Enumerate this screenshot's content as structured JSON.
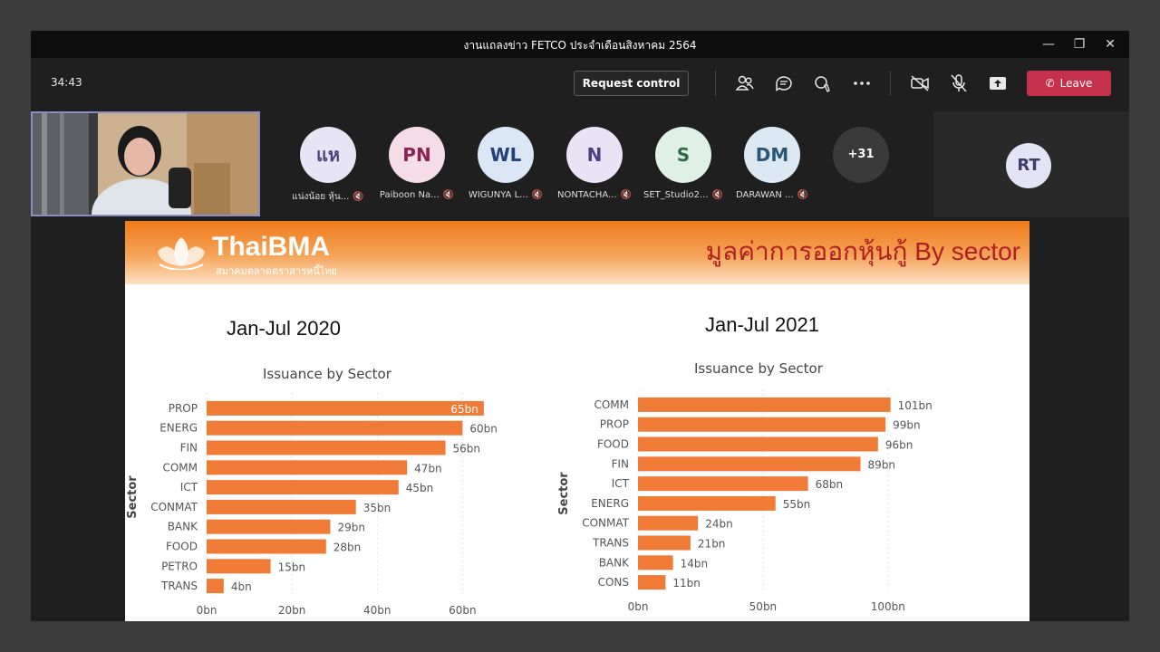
{
  "window": {
    "title": "งานแถลงข่าว FETCO ประจำเดือนสิงหาคม 2564"
  },
  "toolbar": {
    "timer": "34:43",
    "request_control_label": "Request control",
    "leave_label": "Leave",
    "accent_leave": "#c4314b"
  },
  "participants": [
    {
      "initials": "แห",
      "name": "แน่งน้อย หุ้น...",
      "bg": "#e7e5f5",
      "fg": "#4a4380"
    },
    {
      "initials": "PN",
      "name": "Paiboon Na...",
      "bg": "#f6dce6",
      "fg": "#8b2252"
    },
    {
      "initials": "WL",
      "name": "WIGUNYA L...",
      "bg": "#dbe6f6",
      "fg": "#23427a"
    },
    {
      "initials": "N",
      "name": "NONTACHA...",
      "bg": "#e8e3f6",
      "fg": "#4b3f85"
    },
    {
      "initials": "S",
      "name": "SET_Studio2...",
      "bg": "#dff0e6",
      "fg": "#2f6a48"
    },
    {
      "initials": "DM",
      "name": "DARAWAN ...",
      "bg": "#dce9f3",
      "fg": "#2c5676"
    }
  ],
  "more_participants": "+31",
  "rt_avatar": "RT",
  "slide": {
    "logo": "ThaiBMA",
    "logo_sub": "สมาคมตลาดตราสารหนี้ไทย",
    "title": "มูลค่าการออกหุ้นกู้ By sector",
    "bar_color": "#ef7b37"
  },
  "chart_data": [
    {
      "type": "bar",
      "orientation": "horizontal",
      "heading": "Jan-Jul 2020",
      "title": "Issuance by Sector",
      "ylabel": "Sector",
      "categories": [
        "PROP",
        "ENERG",
        "FIN",
        "COMM",
        "ICT",
        "CONMAT",
        "BANK",
        "FOOD",
        "PETRO",
        "TRANS"
      ],
      "values": [
        65,
        60,
        56,
        47,
        45,
        35,
        29,
        28,
        15,
        4
      ],
      "value_labels": [
        "65bn",
        "60bn",
        "56bn",
        "47bn",
        "45bn",
        "35bn",
        "29bn",
        "28bn",
        "15bn",
        "4bn"
      ],
      "xticks": [
        "0bn",
        "20bn",
        "40bn",
        "60bn"
      ],
      "xtick_values": [
        0,
        20,
        40,
        60
      ],
      "xlim": [
        0,
        68
      ]
    },
    {
      "type": "bar",
      "orientation": "horizontal",
      "heading": "Jan-Jul 2021",
      "title": "Issuance by Sector",
      "ylabel": "Sector",
      "categories": [
        "COMM",
        "PROP",
        "FOOD",
        "FIN",
        "ICT",
        "ENERG",
        "CONMAT",
        "TRANS",
        "BANK",
        "CONS"
      ],
      "values": [
        101,
        99,
        96,
        89,
        68,
        55,
        24,
        21,
        14,
        11
      ],
      "value_labels": [
        "101bn",
        "99bn",
        "96bn",
        "89bn",
        "68bn",
        "55bn",
        "24bn",
        "21bn",
        "14bn",
        "11bn"
      ],
      "xticks": [
        "0bn",
        "50bn",
        "100bn"
      ],
      "xtick_values": [
        0,
        50,
        100
      ],
      "xlim": [
        0,
        116
      ]
    }
  ]
}
